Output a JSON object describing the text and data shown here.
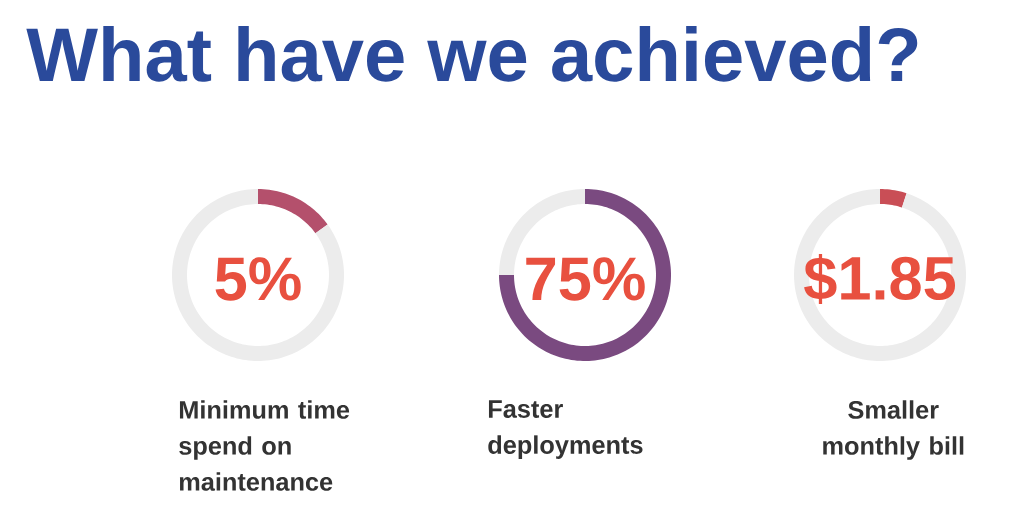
{
  "chart_data": [
    {
      "type": "other",
      "title": "What have we achieved?"
    },
    {
      "type": "donut",
      "categories": [
        null,
        null
      ],
      "values": [
        15,
        85
      ],
      "colors": [
        "#b4506c",
        "#ececec"
      ],
      "annotations": [
        "5%"
      ],
      "xlabel": "Minimum time spend on maintenance"
    },
    {
      "type": "donut",
      "categories": [
        null,
        null
      ],
      "values": [
        75,
        25
      ],
      "colors": [
        "#7a4a80",
        "#ececec"
      ],
      "annotations": [
        "75%"
      ],
      "xlabel": "Faster deployments"
    },
    {
      "type": "donut",
      "categories": [
        null,
        null
      ],
      "values": [
        5,
        95
      ],
      "colors": [
        "#c94e56",
        "#ececec"
      ],
      "annotations": [
        "$1.85"
      ],
      "xlabel": "Smaller monthly bill"
    }
  ]
}
